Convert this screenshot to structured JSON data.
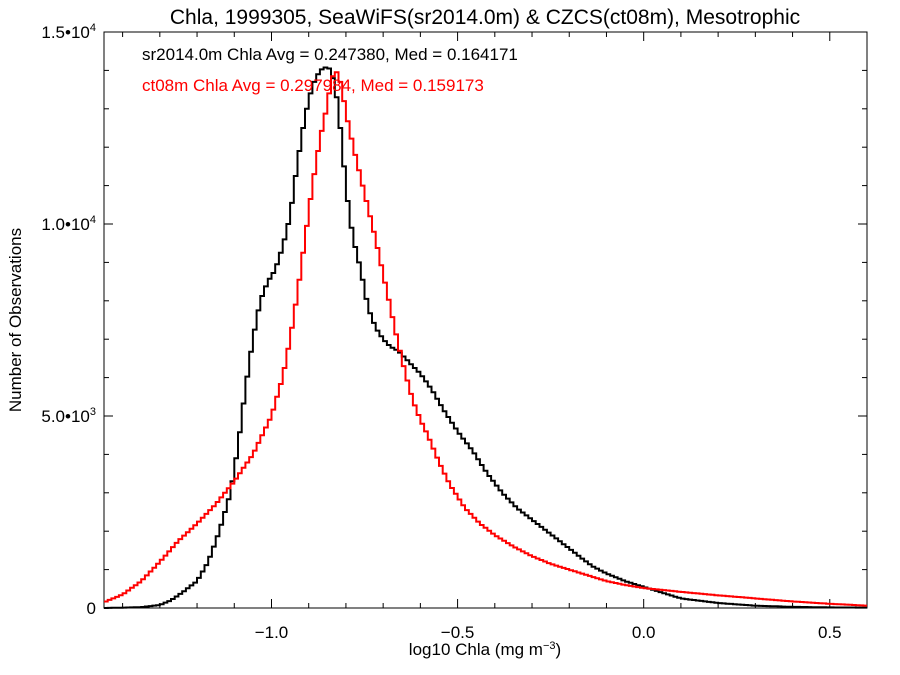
{
  "chart_data": {
    "type": "line",
    "title": "Chla, 1999305, SeaWiFS(sr2014.0m) & CZCS(ct08m), Mesotrophic",
    "xlabel_main": "log10 Chla (mg m",
    "xlabel_sup": "−3",
    "xlabel_tail": ")",
    "ylabel": "Number of Observations",
    "xlim": [
      -1.45,
      0.6
    ],
    "ylim": [
      0,
      15000
    ],
    "grid": false,
    "xticks": [
      {
        "value": -1.0,
        "label": "−1.0"
      },
      {
        "value": -0.5,
        "label": "−0.5"
      },
      {
        "value": 0.0,
        "label": "0.0"
      },
      {
        "value": 0.5,
        "label": "0.5"
      }
    ],
    "yticks": [
      {
        "value": 0,
        "mant": "0",
        "exp": ""
      },
      {
        "value": 5000,
        "mant": "5.0•10",
        "exp": "3"
      },
      {
        "value": 10000,
        "mant": "1.0•10",
        "exp": "4"
      },
      {
        "value": 15000,
        "mant": "1.5•10",
        "exp": "4"
      }
    ],
    "annotations": [
      {
        "text": "sr2014.0m Chla Avg = 0.247380, Med = 0.164171",
        "color": "#000000"
      },
      {
        "text": "ct08m Chla Avg = 0.297984, Med = 0.159173",
        "color": "#ff0000"
      }
    ],
    "series": [
      {
        "color": "#000000",
        "x": [
          -1.45,
          -1.35,
          -1.3,
          -1.27,
          -1.24,
          -1.2,
          -1.17,
          -1.14,
          -1.11,
          -1.09,
          -1.07,
          -1.05,
          -1.03,
          -1.01,
          -0.99,
          -0.97,
          -0.95,
          -0.93,
          -0.91,
          -0.89,
          -0.87,
          -0.85,
          -0.84,
          -0.83,
          -0.82,
          -0.81,
          -0.8,
          -0.79,
          -0.78,
          -0.76,
          -0.74,
          -0.72,
          -0.7,
          -0.68,
          -0.66,
          -0.63,
          -0.6,
          -0.57,
          -0.54,
          -0.5,
          -0.46,
          -0.42,
          -0.38,
          -0.34,
          -0.3,
          -0.26,
          -0.22,
          -0.18,
          -0.14,
          -0.1,
          -0.05,
          0.0,
          0.05,
          0.1,
          0.2,
          0.3,
          0.4,
          0.5,
          0.6
        ],
        "y": [
          0,
          20,
          80,
          200,
          400,
          700,
          1200,
          2000,
          3000,
          4200,
          5700,
          7000,
          8000,
          8500,
          8800,
          9400,
          10200,
          11600,
          12800,
          13600,
          14000,
          14100,
          14000,
          13600,
          13000,
          12000,
          11000,
          10200,
          9600,
          8800,
          7800,
          7300,
          7000,
          6800,
          6700,
          6400,
          6100,
          5700,
          5200,
          4600,
          4100,
          3500,
          3000,
          2600,
          2300,
          2000,
          1700,
          1400,
          1100,
          900,
          700,
          550,
          400,
          250,
          130,
          60,
          30,
          15,
          10
        ]
      },
      {
        "color": "#ff0000",
        "x": [
          -1.45,
          -1.4,
          -1.35,
          -1.3,
          -1.25,
          -1.2,
          -1.15,
          -1.1,
          -1.05,
          -1.0,
          -0.97,
          -0.95,
          -0.93,
          -0.91,
          -0.89,
          -0.87,
          -0.85,
          -0.84,
          -0.83,
          -0.82,
          -0.81,
          -0.8,
          -0.78,
          -0.76,
          -0.74,
          -0.72,
          -0.7,
          -0.68,
          -0.66,
          -0.64,
          -0.62,
          -0.6,
          -0.58,
          -0.55,
          -0.52,
          -0.48,
          -0.44,
          -0.4,
          -0.35,
          -0.3,
          -0.25,
          -0.2,
          -0.15,
          -0.1,
          -0.05,
          0.0,
          0.1,
          0.2,
          0.3,
          0.4,
          0.5,
          0.6
        ],
        "y": [
          150,
          350,
          700,
          1200,
          1750,
          2200,
          2700,
          3300,
          4000,
          5000,
          6000,
          7000,
          8200,
          9600,
          11000,
          12200,
          13100,
          13700,
          14000,
          13900,
          13500,
          12900,
          12000,
          11200,
          10400,
          9600,
          8700,
          7800,
          6900,
          6100,
          5400,
          4900,
          4500,
          3800,
          3200,
          2600,
          2200,
          1900,
          1600,
          1350,
          1150,
          1000,
          850,
          700,
          600,
          520,
          420,
          330,
          250,
          170,
          110,
          60
        ]
      }
    ]
  }
}
